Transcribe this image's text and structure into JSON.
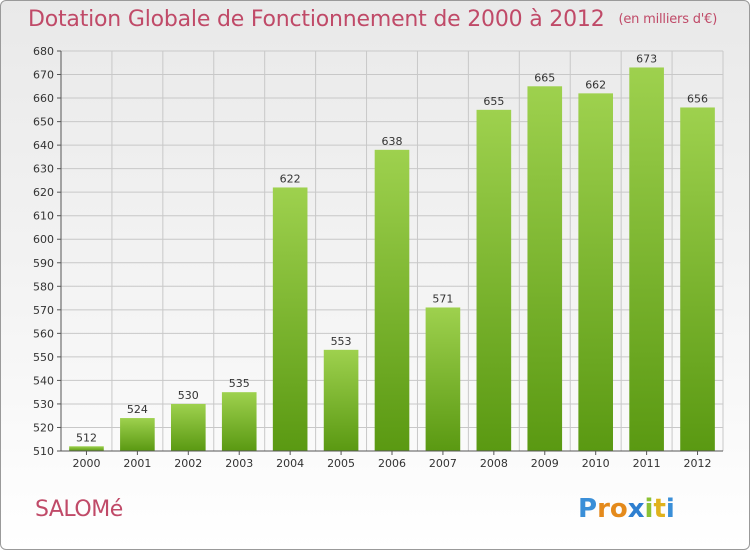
{
  "title": "Dotation Globale de Fonctionnement de 2000 à 2012",
  "title_unit": "(en milliers d'€)",
  "commune": "SALOMé",
  "logo_text": "Proxiti",
  "colors": {
    "accent": "#c04a68",
    "bar_top": "#9ed14e",
    "bar_bottom": "#5a9912",
    "grid": "#c8c8c8"
  },
  "chart_data": {
    "type": "bar",
    "title": "Dotation Globale de Fonctionnement de 2000 à 2012",
    "subtitle": "(en milliers d'€)",
    "xlabel": "",
    "ylabel": "",
    "categories": [
      "2000",
      "2001",
      "2002",
      "2003",
      "2004",
      "2005",
      "2006",
      "2007",
      "2008",
      "2009",
      "2010",
      "2011",
      "2012"
    ],
    "values": [
      512,
      524,
      530,
      535,
      622,
      553,
      638,
      571,
      655,
      665,
      662,
      673,
      656
    ],
    "ylim": [
      510,
      680
    ],
    "yticks": [
      510,
      520,
      530,
      540,
      550,
      560,
      570,
      580,
      590,
      600,
      610,
      620,
      630,
      640,
      650,
      660,
      670,
      680
    ],
    "grid": true,
    "legend": "none"
  }
}
